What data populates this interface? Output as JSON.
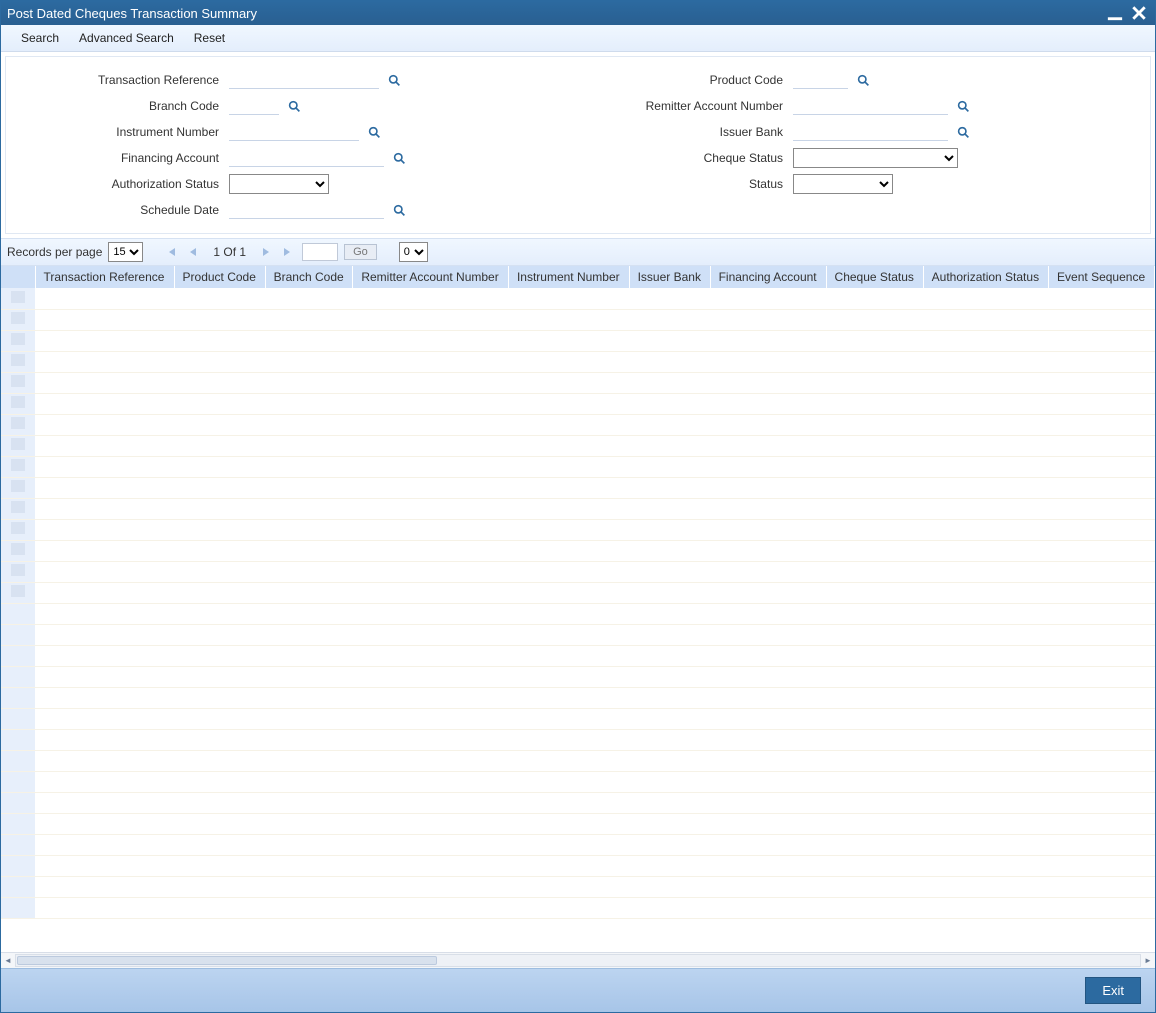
{
  "window": {
    "title": "Post Dated Cheques Transaction Summary"
  },
  "toolbar": {
    "search": "Search",
    "advanced": "Advanced Search",
    "reset": "Reset"
  },
  "fields": {
    "transaction_reference": "Transaction Reference",
    "branch_code": "Branch Code",
    "instrument_number": "Instrument Number",
    "financing_account": "Financing Account",
    "authorization_status": "Authorization Status",
    "schedule_date": "Schedule Date",
    "product_code": "Product Code",
    "remitter_account_number": "Remitter Account Number",
    "issuer_bank": "Issuer Bank",
    "cheque_status": "Cheque Status",
    "status": "Status"
  },
  "pager": {
    "records_per_page_label": "Records per page",
    "records_per_page_value": "15",
    "page_text": "1 Of 1",
    "go": "Go",
    "lock_value": "0"
  },
  "grid": {
    "columns": [
      "Transaction Reference",
      "Product Code",
      "Branch Code",
      "Remitter Account Number",
      "Instrument Number",
      "Issuer Bank",
      "Financing Account",
      "Cheque Status",
      "Authorization Status",
      "Event Sequence"
    ]
  },
  "footer": {
    "exit": "Exit"
  },
  "colors": {
    "titlebar": "#2c6aa0",
    "toolbar_bg": "#e9f2fe",
    "header_cell": "#cfe0f7",
    "row_check": "#e7effb",
    "footer_bg": "#b2cdec",
    "accent": "#2c6aa0"
  }
}
